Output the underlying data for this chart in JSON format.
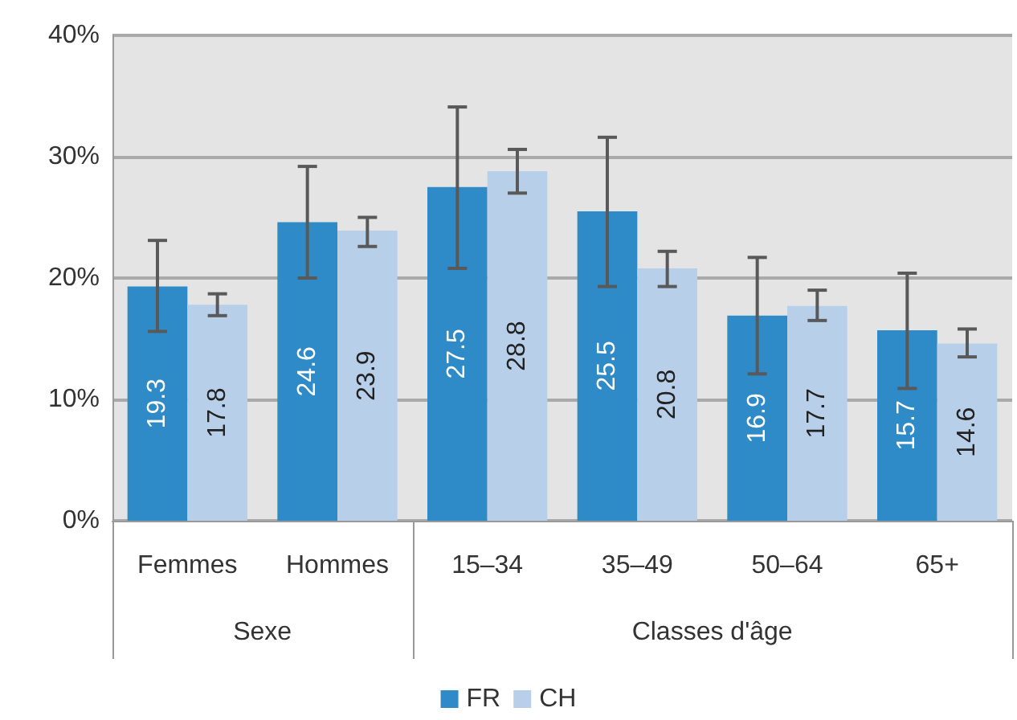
{
  "chart_data": {
    "type": "bar",
    "categories": [
      "Femmes",
      "Hommes",
      "15–34",
      "35–49",
      "50–64",
      "65+"
    ],
    "series": [
      {
        "name": "FR",
        "color": "#2e8bc7",
        "values": [
          19.3,
          24.6,
          27.5,
          25.5,
          16.9,
          15.7
        ],
        "errors": [
          [
            15.6,
            23.1
          ],
          [
            20.0,
            29.2
          ],
          [
            20.8,
            34.1
          ],
          [
            19.3,
            31.6
          ],
          [
            12.1,
            21.7
          ],
          [
            10.9,
            20.4
          ]
        ]
      },
      {
        "name": "CH",
        "color": "#b8cfea",
        "values": [
          17.8,
          23.9,
          28.8,
          20.8,
          17.7,
          14.6
        ],
        "errors": [
          [
            16.9,
            18.7
          ],
          [
            22.6,
            25.0
          ],
          [
            27.0,
            30.6
          ],
          [
            19.3,
            22.2
          ],
          [
            16.5,
            19.0
          ],
          [
            13.5,
            15.8
          ]
        ]
      }
    ],
    "ylim": [
      0,
      40
    ],
    "yticks": [
      {
        "value": 0,
        "label": "0%"
      },
      {
        "value": 10,
        "label": "10%"
      },
      {
        "value": 20,
        "label": "20%"
      },
      {
        "value": 30,
        "label": "30%"
      },
      {
        "value": 40,
        "label": "40%"
      }
    ],
    "grid": "y",
    "legend": "bottom",
    "data_labels": true,
    "annotations": [
      "Sexe",
      "Classes d'âge"
    ]
  }
}
